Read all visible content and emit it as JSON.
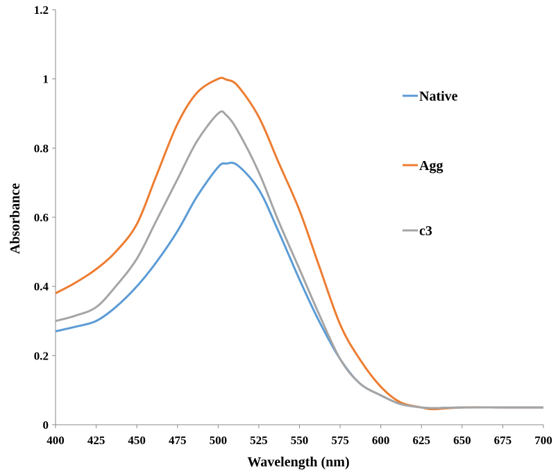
{
  "chart_data": {
    "type": "line",
    "title": "",
    "xlabel": "Wavelength (nm)",
    "ylabel": "Absorbance",
    "xlim": [
      400,
      700
    ],
    "ylim": [
      0,
      1.2
    ],
    "xticks": [
      "400",
      "425",
      "450",
      "475",
      "500",
      "525",
      "550",
      "575",
      "600",
      "625",
      "650",
      "675",
      "700"
    ],
    "yticks": [
      "0",
      "0.2",
      "0.4",
      "0.6",
      "0.8",
      "1",
      "1.2"
    ],
    "grid": false,
    "legend_position": "right",
    "x": [
      400,
      412,
      425,
      437,
      450,
      462,
      475,
      487,
      500,
      505,
      512,
      525,
      537,
      550,
      562,
      575,
      587,
      600,
      612,
      625,
      632,
      650,
      675,
      700
    ],
    "series": [
      {
        "name": "Native",
        "color": "#5B9BD5",
        "values": [
          0.27,
          0.283,
          0.3,
          0.34,
          0.4,
          0.47,
          0.56,
          0.66,
          0.745,
          0.755,
          0.75,
          0.68,
          0.56,
          0.42,
          0.3,
          0.19,
          0.12,
          0.085,
          0.06,
          0.05,
          0.048,
          0.05,
          0.05,
          0.05
        ]
      },
      {
        "name": "Agg",
        "color": "#ED7D31",
        "values": [
          0.38,
          0.41,
          0.45,
          0.5,
          0.58,
          0.72,
          0.87,
          0.96,
          1.0,
          0.998,
          0.98,
          0.89,
          0.76,
          0.62,
          0.46,
          0.29,
          0.19,
          0.11,
          0.065,
          0.05,
          0.045,
          0.05,
          0.05,
          0.05
        ]
      },
      {
        "name": "c3",
        "color": "#A5A5A5",
        "values": [
          0.3,
          0.315,
          0.34,
          0.4,
          0.48,
          0.59,
          0.71,
          0.82,
          0.9,
          0.895,
          0.85,
          0.73,
          0.59,
          0.45,
          0.32,
          0.19,
          0.12,
          0.085,
          0.06,
          0.05,
          0.048,
          0.05,
          0.05,
          0.05
        ]
      }
    ]
  }
}
